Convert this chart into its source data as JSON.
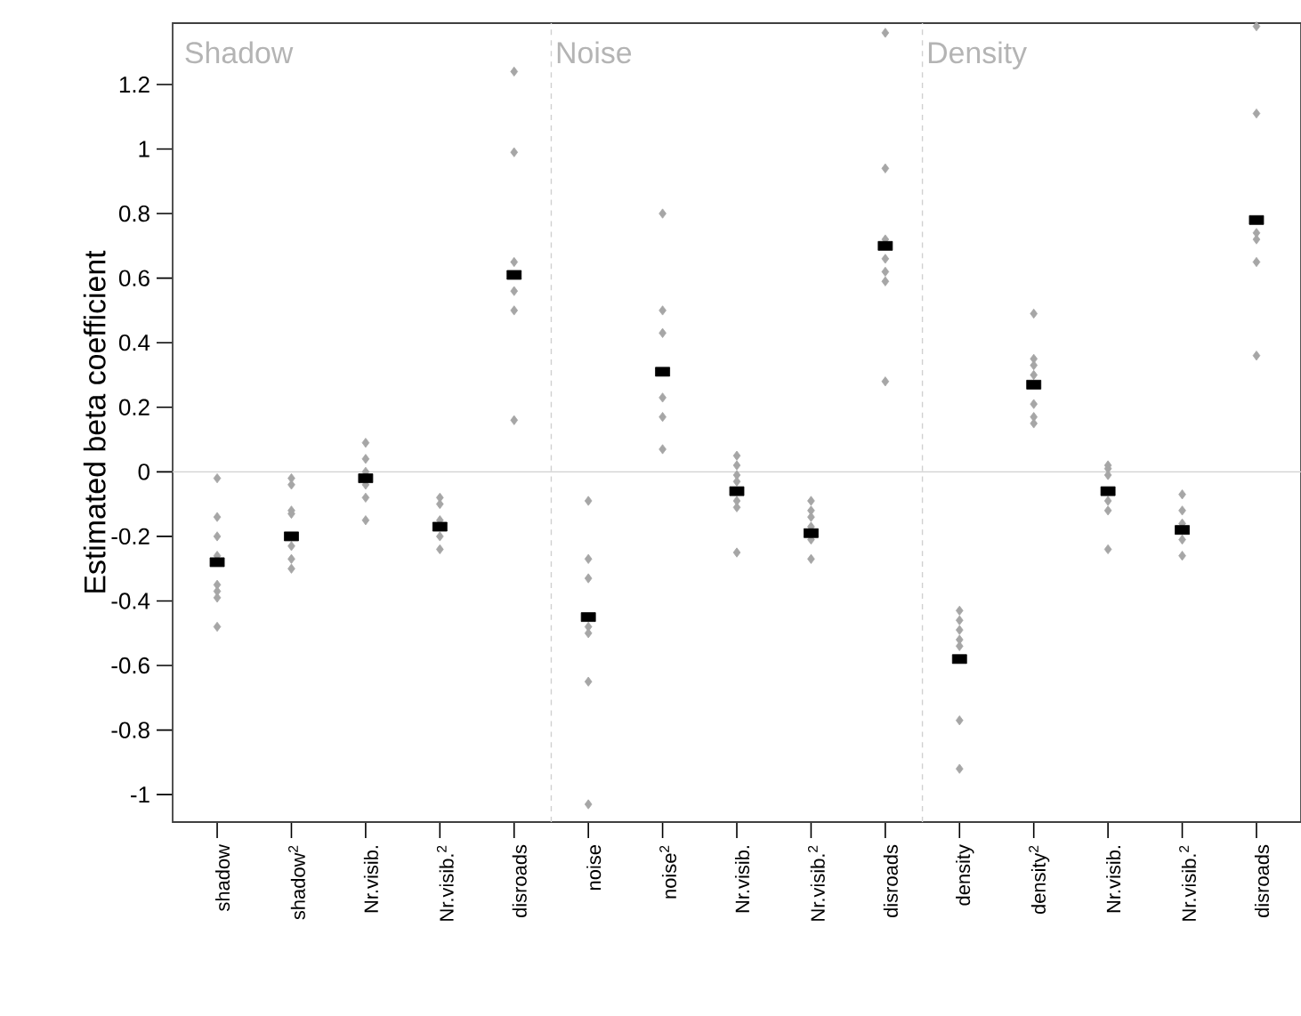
{
  "chart_data": {
    "type": "scatter",
    "ylabel": "Estimated beta coefficient",
    "categories": [
      "shadow",
      "shadow$^{2}$",
      "Nr.visib.",
      "Nr.visib.$^{2}$",
      "disroads",
      "noise",
      "noise$^{2}$",
      "Nr.visib.",
      "Nr.visib.$^{2}$",
      "disroads",
      "density",
      "density$^{2}$",
      "Nr.visib.",
      "Nr.visib.$^{2}$",
      "disroads"
    ],
    "annotations": [
      "Shadow",
      "Noise",
      "Density"
    ],
    "ylim": [
      -1.085,
      1.39
    ],
    "yticks": [
      -1,
      -0.8,
      -0.6,
      -0.4,
      -0.2,
      0,
      0.2,
      0.4,
      0.6,
      0.8,
      1,
      1.2
    ],
    "marker": "diamond",
    "ref_lines": [
      {
        "axis": "y",
        "value": 0,
        "color": "#d0d0d0",
        "line_style": "solid"
      }
    ],
    "series": [
      {
        "color": "#a6a6a6",
        "values": [
          -0.02,
          -0.02,
          0.09,
          -0.08,
          1.24,
          -0.09,
          0.8,
          0.05,
          -0.09,
          1.36,
          -0.43,
          0.49,
          0.02,
          -0.07,
          1.38
        ]
      },
      {
        "color": "#a6a6a6",
        "values": [
          -0.14,
          -0.04,
          0.04,
          -0.1,
          0.99,
          -0.27,
          0.5,
          0.02,
          -0.12,
          0.94,
          -0.46,
          0.35,
          0.01,
          -0.12,
          1.11
        ]
      },
      {
        "color": "#a6a6a6",
        "values": [
          -0.2,
          -0.12,
          0.0,
          -0.15,
          0.65,
          -0.33,
          0.43,
          -0.01,
          -0.14,
          0.72,
          -0.49,
          0.33,
          -0.01,
          -0.16,
          null
        ]
      },
      {
        "color": "#a6a6a6",
        "values": [
          -0.26,
          -0.13,
          null,
          null,
          null,
          null,
          null,
          -0.03,
          -0.17,
          null,
          -0.52,
          0.3,
          null,
          null,
          0.74
        ]
      },
      {
        "color": "#a6a6a6",
        "values": [
          null,
          null,
          -0.04,
          -0.2,
          0.56,
          -0.48,
          0.23,
          null,
          null,
          0.66,
          -0.54,
          null,
          -0.09,
          -0.21,
          0.72
        ]
      },
      {
        "color": "#a6a6a6",
        "values": [
          -0.35,
          -0.23,
          -0.08,
          -0.24,
          0.5,
          -0.5,
          0.17,
          -0.09,
          -0.21,
          0.62,
          null,
          0.21,
          -0.12,
          -0.26,
          0.65
        ]
      },
      {
        "color": "#a6a6a6",
        "values": [
          -0.37,
          -0.27,
          -0.15,
          null,
          0.16,
          -0.65,
          0.07,
          -0.11,
          -0.27,
          0.59,
          -0.77,
          0.17,
          -0.24,
          null,
          0.36
        ]
      },
      {
        "color": "#a6a6a6",
        "values": [
          -0.39,
          -0.3,
          null,
          null,
          null,
          -1.03,
          null,
          -0.25,
          null,
          0.28,
          -0.92,
          0.15,
          null,
          null,
          null
        ]
      },
      {
        "color": "#a6a6a6",
        "values": [
          -0.48,
          null,
          null,
          null,
          null,
          null,
          null,
          null,
          null,
          null,
          null,
          null,
          null,
          null,
          null
        ]
      },
      {
        "color": "#000000",
        "marker": "square",
        "values": [
          -0.28,
          -0.2,
          -0.02,
          -0.17,
          0.61,
          -0.45,
          0.31,
          -0.06,
          -0.19,
          0.7,
          -0.58,
          0.27,
          -0.06,
          -0.18,
          0.78
        ]
      }
    ]
  }
}
